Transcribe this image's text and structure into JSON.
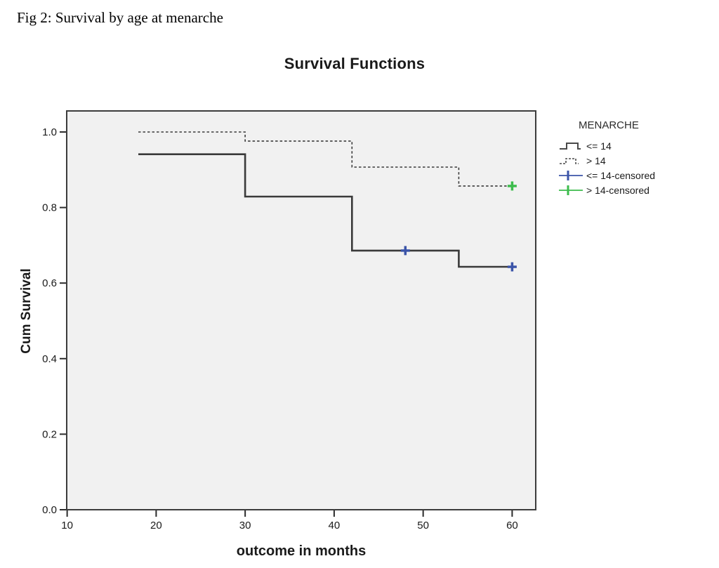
{
  "caption": "Fig 2: Survival by age at menarche",
  "chart": {
    "title": "Survival Functions",
    "legend": {
      "title": "MENARCHE",
      "entries": [
        {
          "label": "<= 14",
          "swatch": "solid-step",
          "color": "#4a4a4a"
        },
        {
          "label": "> 14",
          "swatch": "dashed-step",
          "color": "#4a4a4a"
        },
        {
          "label": "<= 14-censored",
          "swatch": "censored",
          "color": "#3b54a8"
        },
        {
          "label": "> 14-censored",
          "swatch": "censored",
          "color": "#3dbc4d"
        }
      ]
    }
  },
  "chart_data": {
    "type": "line",
    "subtype": "kaplan-meier-step",
    "title": "Survival Functions",
    "xlabel": "outcome in months",
    "ylabel": "Cum Survival",
    "xlim": [
      9.95,
      62.65
    ],
    "ylim": [
      0,
      1.0557
    ],
    "x_ticks": [
      10,
      20,
      30,
      40,
      50,
      60
    ],
    "y_ticks": [
      0.0,
      0.2,
      0.4,
      0.6,
      0.8,
      1.0
    ],
    "grid": false,
    "legend_position": "right",
    "plot_bg": "#f1f1f1",
    "border_color": "#3c3c3c",
    "series": [
      {
        "name": "<= 14",
        "style": "solid",
        "color": "#3a3a3a",
        "points": [
          [
            18,
            0.941
          ],
          [
            30,
            0.941
          ],
          [
            30,
            0.829
          ],
          [
            42,
            0.829
          ],
          [
            42,
            0.686
          ],
          [
            54,
            0.686
          ],
          [
            54,
            0.643
          ],
          [
            60,
            0.643
          ]
        ],
        "censored": [
          [
            48,
            0.686
          ],
          [
            60,
            0.643
          ]
        ],
        "censored_color": "#3b54a8"
      },
      {
        "name": "> 14",
        "style": "dashed",
        "color": "#3a3a3a",
        "points": [
          [
            18,
            1.0
          ],
          [
            30,
            1.0
          ],
          [
            30,
            0.976
          ],
          [
            42,
            0.976
          ],
          [
            42,
            0.907
          ],
          [
            54,
            0.907
          ],
          [
            54,
            0.857
          ],
          [
            60,
            0.857
          ]
        ],
        "censored": [
          [
            60,
            0.857
          ]
        ],
        "censored_color": "#3dbc4d"
      }
    ]
  }
}
